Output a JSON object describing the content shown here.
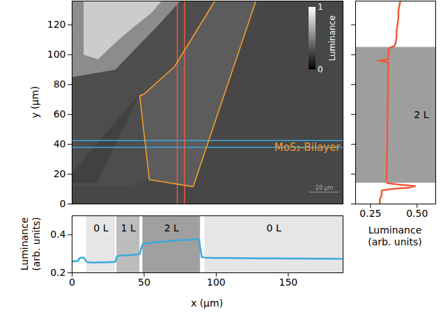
{
  "chart_data": [
    {
      "type": "image",
      "ylabel": "y (µm)",
      "xlim": [
        0,
        188
      ],
      "ylim": [
        0,
        136
      ],
      "yticks": [
        0,
        20,
        40,
        60,
        80,
        100,
        120
      ],
      "tick_labels": "y",
      "regions": [
        {
          "luminance": 0.28,
          "points": [
            [
              0,
              0
            ],
            [
              188,
              0
            ],
            [
              188,
              136
            ],
            [
              0,
              136
            ]
          ]
        },
        {
          "luminance": 0.3,
          "points": [
            [
              0,
              136
            ],
            [
              99,
              136
            ],
            [
              71,
              92
            ],
            [
              49.8,
              73.5
            ],
            [
              46.9,
              72.6
            ],
            [
              53.6,
              16.3
            ],
            [
              40,
              12
            ],
            [
              0,
              12
            ]
          ]
        },
        {
          "luminance": 0.255,
          "points": [
            [
              0,
              21
            ],
            [
              47,
              74
            ],
            [
              17,
              14
            ],
            [
              0,
              14
            ]
          ]
        },
        {
          "luminance": 0.55,
          "points": [
            [
              0,
              136
            ],
            [
              75,
              136
            ],
            [
              60,
              120
            ],
            [
              45,
              105
            ],
            [
              30,
              90
            ],
            [
              0,
              85
            ]
          ]
        },
        {
          "luminance": 0.8,
          "points": [
            [
              8,
              136
            ],
            [
              62,
              136
            ],
            [
              55,
              128
            ],
            [
              42,
              118
            ],
            [
              30,
              108
            ],
            [
              18,
              97
            ],
            [
              8,
              100
            ]
          ]
        },
        {
          "luminance": 0.36,
          "points": [
            [
              99,
              136
            ],
            [
              71,
              92
            ],
            [
              49.8,
              73.5
            ],
            [
              46.9,
              72.6
            ],
            [
              53.6,
              16.3
            ],
            [
              84,
              11.6
            ],
            [
              127.5,
              136
            ]
          ]
        }
      ],
      "outline": {
        "label": "MoS₂-Bilayer",
        "color": "#f39a2e",
        "x": 186,
        "y": 38,
        "points": [
          [
            99,
            136
          ],
          [
            71,
            92
          ],
          [
            49.8,
            73.5
          ],
          [
            46.9,
            72.6
          ],
          [
            53.6,
            16.3
          ],
          [
            84,
            11.6
          ],
          [
            127.5,
            136
          ]
        ]
      },
      "row_cuts": {
        "values": [
          38,
          42.5
        ],
        "color": "#3aa9dc"
      },
      "column_cuts": {
        "values": [
          73,
          78
        ],
        "color": "#ee5a3c"
      },
      "colorbar": {
        "label": "Luminance",
        "range": [
          0,
          1
        ],
        "ticks": [
          0,
          1
        ]
      },
      "scale_bar": {
        "length": 20,
        "label": "20 µm"
      }
    },
    {
      "type": "line",
      "xlabel": "Luminance (arb. units)",
      "xlim": [
        0.17,
        0.6
      ],
      "ylim": [
        0,
        136
      ],
      "xticks": [
        {
          "value": 0.25,
          "label": "0.25"
        },
        {
          "value": 0.5,
          "label": "0.50"
        }
      ],
      "yticks": [
        0,
        20,
        40,
        60,
        80,
        100,
        120
      ],
      "tick_labels": "x",
      "bands": [
        {
          "label": "2 L",
          "range": [
            14,
            105
          ],
          "color": "#9e9e9e"
        }
      ],
      "y": [
        0,
        3,
        6,
        9,
        10,
        11,
        12,
        13,
        14,
        16,
        20,
        30,
        40,
        50,
        60,
        70,
        80,
        90,
        95,
        96,
        97,
        100,
        104,
        105,
        106,
        108,
        112,
        116,
        120,
        125,
        130,
        136
      ],
      "series": [
        {
          "color": "#ee5a3c",
          "values": [
            0.3,
            0.3,
            0.31,
            0.31,
            0.36,
            0.46,
            0.49,
            0.4,
            0.34,
            0.335,
            0.337,
            0.338,
            0.34,
            0.34,
            0.342,
            0.343,
            0.344,
            0.345,
            0.345,
            0.29,
            0.345,
            0.346,
            0.348,
            0.36,
            0.38,
            0.385,
            0.39,
            0.39,
            0.395,
            0.4,
            0.4,
            0.41
          ]
        }
      ]
    },
    {
      "type": "line",
      "xlabel": "x (µm)",
      "ylabel": "Luminance (arb. units)",
      "xlim": [
        0,
        188
      ],
      "ylim": [
        0.2,
        0.5
      ],
      "xticks": [
        0,
        50,
        100,
        150
      ],
      "yticks": [
        0.2,
        0.4
      ],
      "bands": [
        {
          "label": "0 L",
          "range": [
            10,
            30
          ],
          "color": "#e6e6e6"
        },
        {
          "label": "1 L",
          "range": [
            31,
            47
          ],
          "color": "#bdbdbd"
        },
        {
          "label": "2 L",
          "range": [
            49,
            89
          ],
          "color": "#a0a0a0"
        },
        {
          "label": "0 L",
          "range": [
            92,
            188
          ],
          "color": "#e6e6e6"
        }
      ],
      "x": [
        0,
        2,
        4,
        5,
        6,
        8,
        9,
        10,
        12,
        15,
        20,
        25,
        30,
        31,
        33,
        35,
        40,
        45,
        47,
        48,
        49,
        50,
        52,
        55,
        60,
        65,
        70,
        75,
        80,
        85,
        88,
        89,
        90,
        92,
        95,
        100,
        110,
        120,
        130,
        140,
        150,
        160,
        170,
        180,
        187
      ],
      "series": [
        {
          "color": "#3aa9dc",
          "values": [
            0.26,
            0.26,
            0.262,
            0.275,
            0.28,
            0.28,
            0.27,
            0.258,
            0.255,
            0.254,
            0.255,
            0.256,
            0.258,
            0.285,
            0.29,
            0.292,
            0.293,
            0.296,
            0.3,
            0.33,
            0.35,
            0.352,
            0.355,
            0.358,
            0.362,
            0.365,
            0.37,
            0.372,
            0.373,
            0.376,
            0.377,
            0.33,
            0.282,
            0.28,
            0.279,
            0.278,
            0.278,
            0.277,
            0.276,
            0.276,
            0.275,
            0.275,
            0.274,
            0.274,
            0.273
          ]
        }
      ]
    }
  ]
}
